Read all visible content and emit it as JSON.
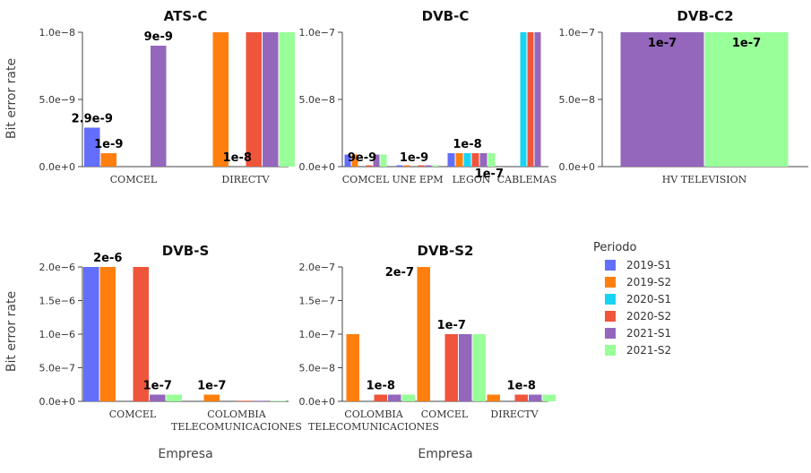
{
  "chart_data": {
    "type": "bar",
    "legend": {
      "title": "Periodo",
      "placement": "right",
      "items": [
        {
          "name": "2019-S1",
          "color": "#636EFA"
        },
        {
          "name": "2019-S2",
          "color": "#FF7F0E"
        },
        {
          "name": "2020-S1",
          "color": "#19D3F3"
        },
        {
          "name": "2020-S2",
          "color": "#EF553B"
        },
        {
          "name": "2021-S1",
          "color": "#9467BD"
        },
        {
          "name": "2021-S2",
          "color": "#99FF99"
        }
      ]
    },
    "ylabel": "Bit error rate",
    "xlabel": "Empresa",
    "panels": [
      {
        "title": "ATS-C",
        "ticks": [
          0,
          5e-09,
          1e-08
        ],
        "tick_labels": [
          "0.0e+0",
          "5.0e−9",
          "1.0e−8"
        ],
        "ylim": [
          0,
          1e-08
        ],
        "categories": [
          "COMCEL",
          "DIRECTV"
        ],
        "series": [
          {
            "name": "2019-S1",
            "values": [
              2.9e-09,
              null
            ]
          },
          {
            "name": "2019-S2",
            "values": [
              1e-09,
              1e-08
            ]
          },
          {
            "name": "2020-S1",
            "values": [
              null,
              null
            ]
          },
          {
            "name": "2020-S2",
            "values": [
              null,
              1e-08
            ]
          },
          {
            "name": "2021-S1",
            "values": [
              9e-09,
              1e-08
            ]
          },
          {
            "name": "2021-S2",
            "values": [
              null,
              1e-08
            ]
          }
        ],
        "labels": [
          {
            "text": "2.9e-9",
            "cat": 0,
            "series": 0
          },
          {
            "text": "1e-9",
            "cat": 0,
            "series": 1
          },
          {
            "text": "9e-9",
            "cat": 0,
            "series": 4
          },
          {
            "text": "1e-8",
            "cat": 1,
            "series": 2
          }
        ]
      },
      {
        "title": "DVB-C",
        "ticks": [
          0,
          5e-08,
          1e-07
        ],
        "tick_labels": [
          "0.0e+0",
          "5.0e−8",
          "1.0e−7"
        ],
        "ylim": [
          0,
          1e-07
        ],
        "categories": [
          "COMCEL",
          "UNE EPM",
          "LEGON",
          "CABLEMAS"
        ],
        "series": [
          {
            "name": "2019-S1",
            "values": [
              9e-09,
              1e-09,
              1e-08,
              null
            ]
          },
          {
            "name": "2019-S2",
            "values": [
              9e-09,
              1e-09,
              1e-08,
              null
            ]
          },
          {
            "name": "2020-S1",
            "values": [
              null,
              null,
              1e-08,
              1e-07
            ]
          },
          {
            "name": "2020-S2",
            "values": [
              1e-09,
              1e-09,
              1e-08,
              1e-07
            ]
          },
          {
            "name": "2021-S1",
            "values": [
              9e-09,
              1e-09,
              1e-08,
              1e-07
            ]
          },
          {
            "name": "2021-S2",
            "values": [
              9e-09,
              1e-09,
              1e-08,
              null
            ]
          }
        ],
        "labels": [
          {
            "text": "9e-9",
            "cat": 0,
            "series": 2
          },
          {
            "text": "1e-9",
            "cat": 1,
            "series": 2
          },
          {
            "text": "1e-8",
            "cat": 2,
            "series": 2
          },
          {
            "text": "1e-7",
            "cat": 3,
            "series": 0
          }
        ]
      },
      {
        "title": "DVB-C2",
        "ticks": [
          0,
          5e-08,
          1e-07
        ],
        "tick_labels": [
          "0.0e+0",
          "5.0e−8",
          "1.0e−7"
        ],
        "ylim": [
          0,
          1e-07
        ],
        "categories": [
          "HV TELEVISION"
        ],
        "series": [
          {
            "name": "2021-S1",
            "values": [
              1e-07
            ]
          },
          {
            "name": "2021-S2",
            "values": [
              1e-07
            ]
          }
        ],
        "labels": [
          {
            "text": "1e-7",
            "cat": 0,
            "series": 0,
            "inside": true
          },
          {
            "text": "1e-7",
            "cat": 0,
            "series": 1,
            "inside": true
          }
        ]
      },
      {
        "title": "DVB-S",
        "ticks": [
          0,
          5e-07,
          1e-06,
          1.5e-06,
          2e-06
        ],
        "tick_labels": [
          "0.0e+0",
          "5.0e−7",
          "1.0e−6",
          "1.5e−6",
          "2.0e−6"
        ],
        "ylim": [
          0,
          2e-06
        ],
        "categories": [
          "COMCEL",
          "COLOMBIA|TELECOMUNICACIONES"
        ],
        "series": [
          {
            "name": "2019-S1",
            "values": [
              2e-06,
              null
            ]
          },
          {
            "name": "2019-S2",
            "values": [
              2e-06,
              1e-07
            ]
          },
          {
            "name": "2020-S1",
            "values": [
              null,
              null
            ]
          },
          {
            "name": "2020-S2",
            "values": [
              2e-06,
              1e-09
            ]
          },
          {
            "name": "2021-S1",
            "values": [
              1e-07,
              1e-09
            ]
          },
          {
            "name": "2021-S2",
            "values": [
              1e-07,
              1e-09
            ]
          }
        ],
        "labels": [
          {
            "text": "2e-6",
            "cat": 0,
            "series": 1
          },
          {
            "text": "1e-7",
            "cat": 0,
            "series": 4
          },
          {
            "text": "1e-7",
            "cat": 1,
            "series": 1
          }
        ]
      },
      {
        "title": "DVB-S2",
        "ticks": [
          0,
          5e-08,
          1e-07,
          1.5e-07,
          2e-07
        ],
        "tick_labels": [
          "0.0e+0",
          "5.0e−8",
          "1.0e−7",
          "1.5e−7",
          "2.0e−7"
        ],
        "ylim": [
          0,
          2e-07
        ],
        "categories": [
          "COLOMBIA|TELECOMUNICACIONES",
          "COMCEL",
          "DIRECTV"
        ],
        "series": [
          {
            "name": "2019-S1",
            "values": [
              null,
              null,
              null
            ]
          },
          {
            "name": "2019-S2",
            "values": [
              1e-07,
              2e-07,
              1e-08
            ]
          },
          {
            "name": "2020-S1",
            "values": [
              null,
              null,
              null
            ]
          },
          {
            "name": "2020-S2",
            "values": [
              1e-08,
              1e-07,
              1e-08
            ]
          },
          {
            "name": "2021-S1",
            "values": [
              1e-08,
              1e-07,
              1e-08
            ]
          },
          {
            "name": "2021-S2",
            "values": [
              1e-08,
              1e-07,
              1e-08
            ]
          }
        ],
        "labels": [
          {
            "text": "1e-8",
            "cat": 0,
            "series": 3
          },
          {
            "text": "2e-7",
            "cat": 1,
            "series": 1,
            "side": "left"
          },
          {
            "text": "1e-7",
            "cat": 1,
            "series": 3
          },
          {
            "text": "1e-8",
            "cat": 2,
            "series": 3
          }
        ]
      }
    ]
  }
}
